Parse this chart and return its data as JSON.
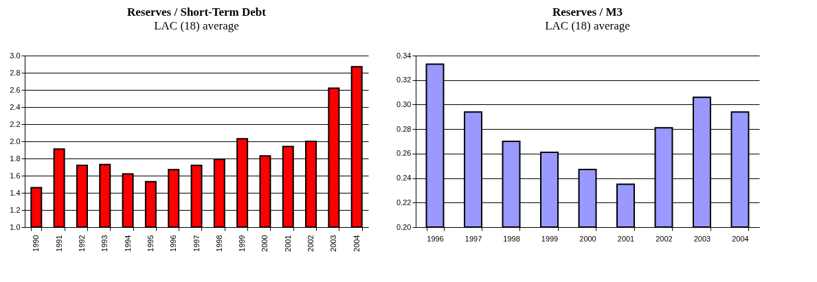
{
  "chart_data": [
    {
      "type": "bar",
      "title": "Reserves / Short-Term Debt",
      "subtitle": "LAC (18) average",
      "categories": [
        "1990",
        "1991",
        "1992",
        "1993",
        "1994",
        "1995",
        "1996",
        "1997",
        "1998",
        "1999",
        "2000",
        "2001",
        "2002",
        "2003",
        "2004"
      ],
      "values": [
        1.46,
        1.91,
        1.72,
        1.73,
        1.62,
        1.53,
        1.67,
        1.72,
        1.79,
        2.03,
        1.83,
        1.94,
        2.0,
        2.62,
        2.87
      ],
      "color": "#ff0000",
      "ylim": [
        1.0,
        3.0
      ],
      "yticks": [
        {
          "value": 1.0,
          "label": "1.0"
        },
        {
          "value": 1.2,
          "label": "1.2"
        },
        {
          "value": 1.4,
          "label": "1.4"
        },
        {
          "value": 1.6,
          "label": "1.6"
        },
        {
          "value": 1.8,
          "label": "1.8"
        },
        {
          "value": 2.0,
          "label": "2.0"
        },
        {
          "value": 2.2,
          "label": "2.2"
        },
        {
          "value": 2.4,
          "label": "2.4"
        },
        {
          "value": 2.6,
          "label": "2.6"
        },
        {
          "value": 2.8,
          "label": "2.8"
        },
        {
          "value": 3.0,
          "label": "3.0"
        }
      ],
      "grid": "y"
    },
    {
      "type": "bar",
      "title": "Reserves / M3",
      "subtitle": "LAC (18) average",
      "categories": [
        "1996",
        "1997",
        "1998",
        "1999",
        "2000",
        "2001",
        "2002",
        "2003",
        "2004"
      ],
      "values": [
        0.333,
        0.294,
        0.27,
        0.261,
        0.247,
        0.235,
        0.281,
        0.306,
        0.294
      ],
      "color": "#9999ff",
      "ylim": [
        0.2,
        0.34
      ],
      "yticks": [
        {
          "value": 0.2,
          "label": "0.20"
        },
        {
          "value": 0.22,
          "label": "0.22"
        },
        {
          "value": 0.24,
          "label": "0.24"
        },
        {
          "value": 0.26,
          "label": "0.26"
        },
        {
          "value": 0.28,
          "label": "0.28"
        },
        {
          "value": 0.3,
          "label": "0.30"
        },
        {
          "value": 0.32,
          "label": "0.32"
        },
        {
          "value": 0.34,
          "label": "0.34"
        }
      ],
      "grid": "y"
    }
  ]
}
